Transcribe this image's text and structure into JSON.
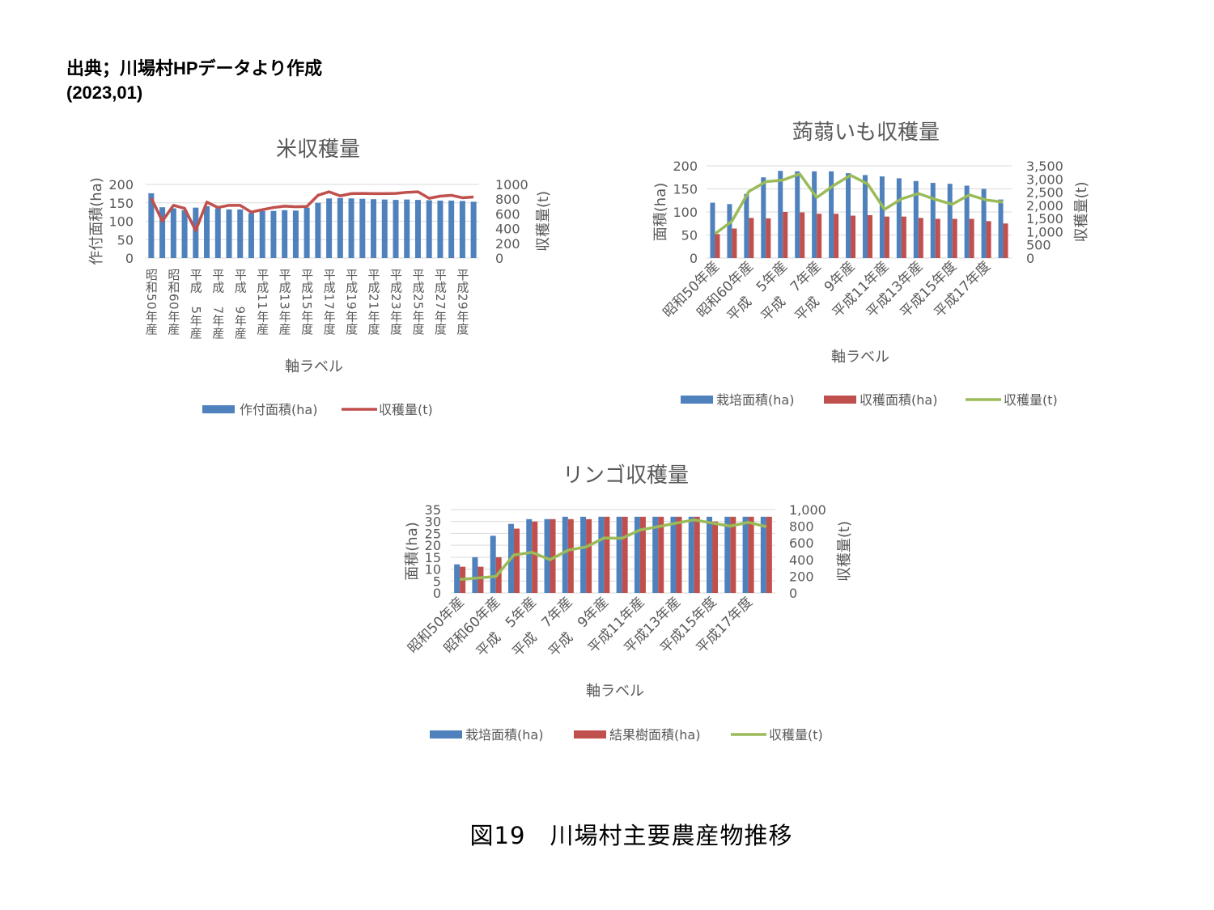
{
  "source": {
    "line1": "出典；川場村HPデータより作成",
    "line2": "(2023,01)"
  },
  "caption": "図19　川場村主要農産物推移",
  "chart_data": [
    {
      "type": "bar+line",
      "title": "米収穫量",
      "xlabel": "軸ラベル",
      "ylabel": "作付面積(ha)",
      "y2label": "収穫量(t)",
      "ylim": [
        0,
        200
      ],
      "y2lim": [
        0,
        1000
      ],
      "yticks": [
        "0",
        "50",
        "100",
        "150",
        "200"
      ],
      "y2ticks": [
        "0",
        "200",
        "400",
        "600",
        "800",
        "1000"
      ],
      "grid": true,
      "legend_position": "bottom",
      "categories": [
        "昭和50年産",
        "",
        "昭和60年産",
        "",
        "平成　5年産",
        "",
        "平成　7年産",
        "",
        "平成　9年産",
        "",
        "平成11年産",
        "",
        "平成13年産",
        "",
        "平成15年度",
        "",
        "平成17年度",
        "",
        "平成19年度",
        "",
        "平成21年度",
        "",
        "平成23年度",
        "",
        "平成25年度",
        "",
        "平成27年度",
        "",
        "平成29年度",
        ""
      ],
      "series": [
        {
          "name": "作付面積(ha)",
          "kind": "bar",
          "axis": "left",
          "color": "#4f81bd",
          "values": [
            176,
            138,
            135,
            130,
            137,
            141,
            135,
            132,
            132,
            122,
            128,
            128,
            130,
            129,
            137,
            150,
            162,
            163,
            162,
            161,
            160,
            159,
            158,
            159,
            158,
            157,
            156,
            156,
            155,
            153
          ]
        },
        {
          "name": "収穫量(t)",
          "kind": "line",
          "axis": "right",
          "color": "#c0504d",
          "values": [
            815,
            502,
            716,
            675,
            373,
            760,
            686,
            716,
            716,
            624,
            657,
            686,
            705,
            697,
            701,
            852,
            900,
            845,
            875,
            878,
            875,
            875,
            878,
            893,
            900,
            812,
            841,
            852,
            819,
            830
          ]
        }
      ]
    },
    {
      "type": "bar+line",
      "title": "蒟蒻いも収穫量",
      "xlabel": "軸ラベル",
      "ylabel": "面積(ha)",
      "y2label": "収穫量(t)",
      "ylim": [
        0,
        200
      ],
      "y2lim": [
        0,
        3500
      ],
      "yticks": [
        "0",
        "50",
        "100",
        "150",
        "200"
      ],
      "y2ticks": [
        "0",
        "500",
        "1,000",
        "1,500",
        "2,000",
        "2,500",
        "3,000",
        "3,500"
      ],
      "grid": true,
      "legend_position": "bottom",
      "categories": [
        "昭和50年産",
        "",
        "昭和60年産",
        "",
        "平成　5年産",
        "",
        "平成　7年産",
        "",
        "平成　9年産",
        "",
        "平成11年産",
        "",
        "平成13年産",
        "",
        "平成15年度",
        "",
        "平成17年度",
        ""
      ],
      "series": [
        {
          "name": "栽培面積(ha)",
          "kind": "bar",
          "axis": "left",
          "color": "#4f81bd",
          "values": [
            120,
            117,
            139,
            175,
            189,
            188,
            188,
            188,
            184,
            180,
            177,
            173,
            167,
            163,
            161,
            157,
            150,
            127
          ]
        },
        {
          "name": "収穫面積(ha)",
          "kind": "bar",
          "axis": "left",
          "color": "#c0504d",
          "values": [
            52,
            64,
            87,
            86,
            100,
            99,
            96,
            96,
            92,
            93,
            90,
            90,
            87,
            85,
            85,
            85,
            80,
            75
          ]
        },
        {
          "name": "収穫量(t)",
          "kind": "line",
          "axis": "right",
          "color": "#9bbb59",
          "values": [
            920,
            1400,
            2530,
            2898,
            2959,
            3194,
            2296,
            2755,
            3143,
            2816,
            1847,
            2245,
            2449,
            2224,
            2041,
            2398,
            2204,
            2122
          ]
        }
      ]
    },
    {
      "type": "bar+line",
      "title": "リンゴ収穫量",
      "xlabel": "軸ラベル",
      "ylabel": "面積(ha)",
      "y2label": "収穫量(t)",
      "ylim": [
        0,
        35
      ],
      "y2lim": [
        0,
        1000
      ],
      "yticks": [
        "0",
        "5",
        "10",
        "15",
        "20",
        "25",
        "30",
        "35"
      ],
      "y2ticks": [
        "0",
        "200",
        "400",
        "600",
        "800",
        "1,000"
      ],
      "grid": true,
      "legend_position": "bottom",
      "categories": [
        "昭和50年産",
        "",
        "昭和60年産",
        "",
        "平成　5年産",
        "",
        "平成　7年産",
        "",
        "平成　9年産",
        "",
        "平成11年産",
        "",
        "平成13年産",
        "",
        "平成15年度",
        "",
        "平成17年度",
        ""
      ],
      "series": [
        {
          "name": "栽培面積(ha)",
          "kind": "bar",
          "axis": "left",
          "color": "#4f81bd",
          "values": [
            12,
            15,
            24,
            29,
            31,
            31,
            32,
            32,
            32,
            32,
            32,
            32,
            32,
            32,
            32,
            32,
            32,
            32
          ]
        },
        {
          "name": "結果樹面積(ha)",
          "kind": "bar",
          "axis": "left",
          "color": "#c0504d",
          "values": [
            11,
            11,
            15,
            27,
            30,
            31,
            31,
            31,
            32,
            32,
            32,
            32,
            32,
            32,
            30,
            32,
            32,
            32
          ]
        },
        {
          "name": "収穫量(t)",
          "kind": "line",
          "axis": "right",
          "color": "#9bbb59",
          "values": [
            162,
            179,
            198,
            455,
            487,
            399,
            513,
            552,
            659,
            656,
            756,
            795,
            838,
            877,
            838,
            802,
            847,
            795
          ]
        }
      ]
    }
  ]
}
